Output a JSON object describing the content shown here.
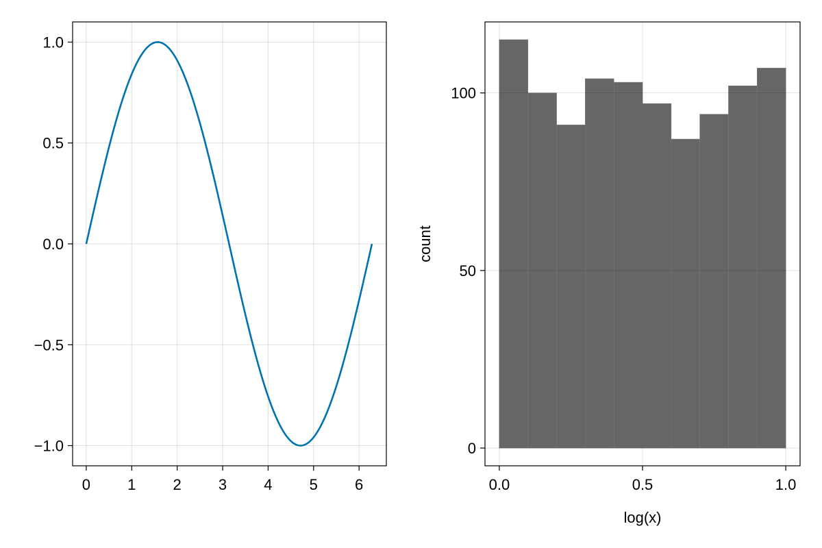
{
  "chart_data": [
    {
      "type": "line",
      "title": "",
      "xlabel": "",
      "ylabel": "",
      "function": "sin(x)",
      "x_range": [
        0,
        6.283
      ],
      "xlim": [
        -0.3,
        6.6
      ],
      "ylim": [
        -1.1,
        1.1
      ],
      "xticks": [
        0,
        1,
        2,
        3,
        4,
        5,
        6
      ],
      "xtick_labels": [
        "0",
        "1",
        "2",
        "3",
        "4",
        "5",
        "6"
      ],
      "yticks": [
        -1.0,
        -0.5,
        0.0,
        0.5,
        1.0
      ],
      "ytick_labels": [
        "−1.0",
        "−0.5",
        "0.0",
        "0.5",
        "1.0"
      ],
      "grid": true,
      "series": [
        {
          "color": "#0072b2",
          "x": [
            0,
            0.2,
            0.4,
            0.6,
            0.8,
            1.0,
            1.2,
            1.4,
            1.571,
            1.8,
            2.0,
            2.2,
            2.4,
            2.6,
            2.8,
            3.0,
            3.142,
            3.4,
            3.6,
            3.8,
            4.0,
            4.2,
            4.4,
            4.6,
            4.712,
            4.9,
            5.1,
            5.3,
            5.5,
            5.7,
            5.9,
            6.1,
            6.283
          ],
          "y": [
            0,
            0.199,
            0.389,
            0.565,
            0.717,
            0.841,
            0.932,
            0.985,
            1.0,
            0.974,
            0.909,
            0.808,
            0.675,
            0.516,
            0.335,
            0.141,
            0.0,
            -0.256,
            -0.443,
            -0.612,
            -0.757,
            -0.872,
            -0.952,
            -0.994,
            -1.0,
            -0.982,
            -0.926,
            -0.832,
            -0.706,
            -0.551,
            -0.374,
            -0.182,
            0.0
          ]
        }
      ]
    },
    {
      "type": "bar",
      "title": "",
      "xlabel": "log(x)",
      "ylabel": "count",
      "bin_edges": [
        0.0,
        0.1,
        0.2,
        0.3,
        0.4,
        0.5,
        0.6,
        0.7,
        0.8,
        0.9,
        1.0
      ],
      "values": [
        115,
        100,
        91,
        104,
        103,
        97,
        87,
        94,
        102,
        107
      ],
      "xlim": [
        -0.05,
        1.05
      ],
      "ylim": [
        -5,
        120
      ],
      "xticks": [
        0.0,
        0.5,
        1.0
      ],
      "xtick_labels": [
        "0.0",
        "0.5",
        "1.0"
      ],
      "yticks": [
        0,
        50,
        100
      ],
      "ytick_labels": [
        "0",
        "50",
        "100"
      ],
      "grid": true,
      "bar_color": "#666666"
    }
  ]
}
